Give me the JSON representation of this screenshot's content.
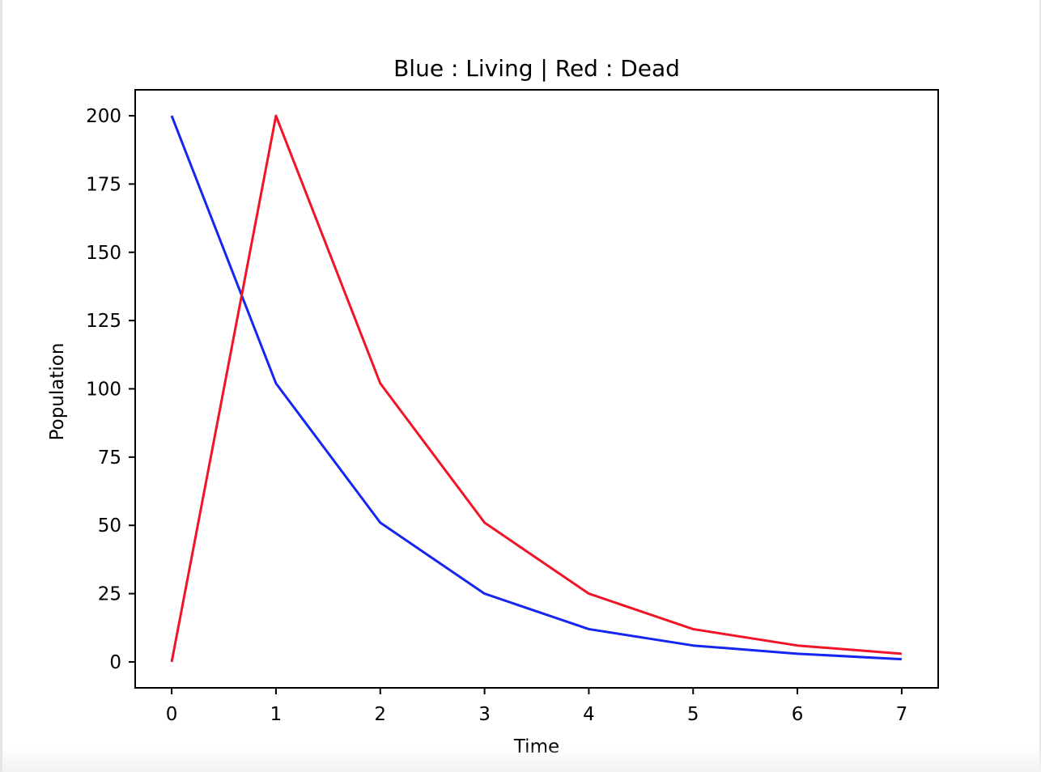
{
  "chart_data": {
    "type": "line",
    "title": "Blue : Living | Red : Dead",
    "xlabel": "Time",
    "ylabel": "Population",
    "x": [
      0,
      1,
      2,
      3,
      4,
      5,
      6,
      7
    ],
    "xlim": [
      -0.35,
      7.35
    ],
    "ylim": [
      -9.5,
      209.5
    ],
    "xticks": [
      0,
      1,
      2,
      3,
      4,
      5,
      6,
      7
    ],
    "yticks": [
      0,
      25,
      50,
      75,
      100,
      125,
      150,
      175,
      200
    ],
    "grid": false,
    "legend": "none",
    "series": [
      {
        "color": "#1426f0",
        "values": [
          200,
          102,
          51,
          25,
          12,
          6,
          3,
          1
        ]
      },
      {
        "color": "#f01426",
        "values": [
          0,
          200,
          102,
          51,
          25,
          12,
          6,
          3
        ]
      }
    ]
  }
}
